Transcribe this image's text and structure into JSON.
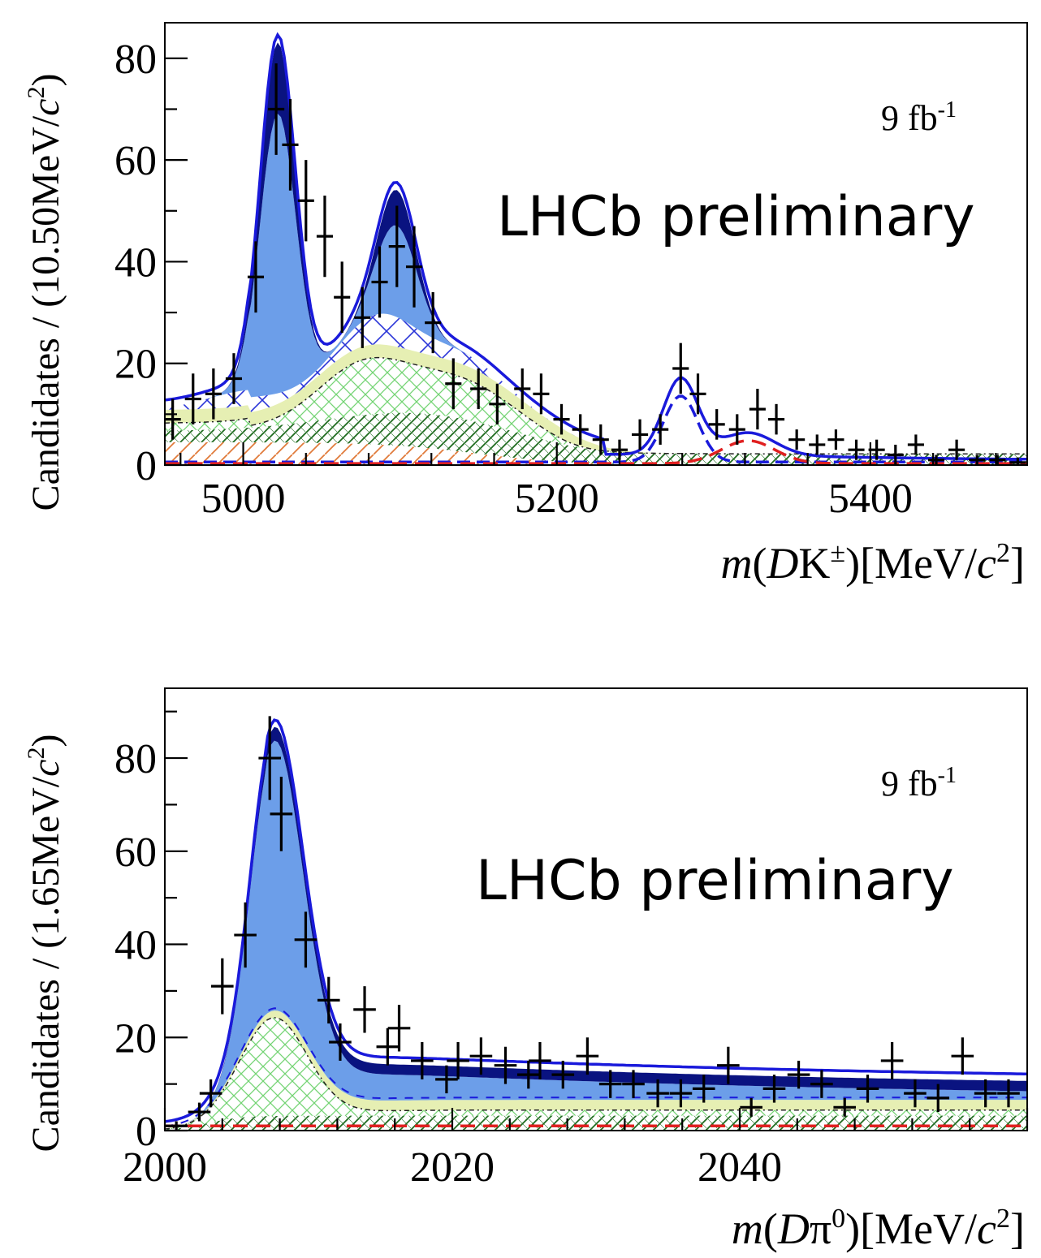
{
  "chart_data": [
    {
      "type": "scatter",
      "title": "",
      "xlabel_pre": "m(DK",
      "xlabel_sup": "±",
      "xlabel_post": ")[MeV/c²]",
      "ylabel": "Candidates / (10.50MeV/c²)",
      "lumi": "9 fb⁻¹",
      "watermark": "LHCb preliminary",
      "xlim": [
        4950,
        5500
      ],
      "ylim": [
        0,
        87
      ],
      "xticks": [
        5000,
        5200,
        5400
      ],
      "yticks": [
        0,
        20,
        40,
        60,
        80
      ],
      "points": {
        "x": [
          4955,
          4968,
          4981,
          4994,
          5008,
          5021,
          5030,
          5040,
          5052,
          5063,
          5076,
          5087,
          5098,
          5109,
          5121,
          5134,
          5150,
          5162,
          5178,
          5190,
          5203,
          5215,
          5228,
          5240,
          5253,
          5266,
          5279,
          5290,
          5302,
          5315,
          5328,
          5340,
          5353,
          5366,
          5378,
          5391,
          5404,
          5416,
          5429,
          5442,
          5455,
          5468,
          5481,
          5494
        ],
        "y": [
          9,
          13,
          14,
          17,
          37,
          70,
          63,
          52,
          45,
          33,
          29,
          36,
          43,
          39,
          28,
          16,
          15,
          12,
          15,
          14,
          9,
          7,
          5,
          3,
          6,
          7,
          19,
          14,
          8,
          7,
          11,
          9,
          5,
          4,
          5,
          3,
          3,
          2,
          4,
          1,
          3,
          1,
          1,
          0.5
        ],
        "err": [
          4,
          5,
          5,
          5,
          7,
          9,
          9,
          8,
          8,
          7,
          6,
          7,
          8,
          8,
          6,
          5,
          4,
          4,
          4,
          4,
          3,
          3,
          3,
          2,
          3,
          3,
          5,
          4,
          3,
          3,
          4,
          3,
          2,
          2,
          2,
          2,
          2,
          2,
          2,
          1,
          2,
          1,
          1,
          1
        ]
      },
      "series": [
        {
          "name": "total fit",
          "color": "#1a1adb"
        },
        {
          "name": "signal (dark)",
          "color": "#0a1380"
        },
        {
          "name": "signal (light)",
          "color": "#6c9ee9"
        },
        {
          "name": "partially reconstructed (blue hatched)",
          "color": "#2a35d8"
        },
        {
          "name": "misID (light green band)",
          "color": "#e6efb3"
        },
        {
          "name": "combinatorial (green crosshatch)",
          "color": "#74d474"
        },
        {
          "name": "dark green hatched",
          "color": "#1e6b1e"
        },
        {
          "name": "orange hatched",
          "color": "#e07a3a"
        },
        {
          "name": "B peak (dashed blue)",
          "color": "#1a1adb"
        },
        {
          "name": "red dashed",
          "color": "#e02020"
        }
      ]
    },
    {
      "type": "scatter",
      "title": "",
      "xlabel_pre": "m(Dπ",
      "xlabel_sup": "0",
      "xlabel_post": ")[MeV/c²]",
      "ylabel": "Candidates / (1.65MeV/c²)",
      "lumi": "9 fb⁻¹",
      "watermark": "LHCb preliminary",
      "xlim": [
        2000,
        2060
      ],
      "ylim": [
        0,
        95
      ],
      "xticks": [
        2000,
        2020,
        2040
      ],
      "yticks": [
        0,
        20,
        40,
        60,
        80
      ],
      "points": {
        "x": [
          2000.8,
          2002.4,
          2003.2,
          2004.0,
          2005.6,
          2007.3,
          2008.1,
          2009.8,
          2011.4,
          2012.2,
          2013.9,
          2015.5,
          2016.3,
          2017.9,
          2019.6,
          2020.4,
          2022.0,
          2023.7,
          2025.3,
          2026.1,
          2027.7,
          2029.4,
          2031.0,
          2032.6,
          2034.3,
          2035.9,
          2037.5,
          2039.2,
          2040.8,
          2042.4,
          2044.1,
          2045.7,
          2047.3,
          2048.9,
          2050.6,
          2052.2,
          2053.8,
          2055.5,
          2057.1,
          2058.7
        ],
        "y": [
          1,
          4,
          8,
          31,
          42,
          80,
          68,
          41,
          28,
          19,
          26,
          18,
          22,
          15,
          11,
          15,
          16,
          14,
          12,
          15,
          12,
          16,
          10,
          10,
          8,
          8,
          9,
          14,
          5,
          9,
          12,
          10,
          5,
          9,
          15,
          8,
          7,
          16,
          8,
          8
        ],
        "err": [
          1,
          2,
          3,
          6,
          7,
          9,
          8,
          6,
          5,
          4,
          5,
          4,
          5,
          4,
          3,
          4,
          4,
          4,
          3,
          4,
          3,
          4,
          3,
          3,
          3,
          3,
          3,
          4,
          2,
          3,
          3,
          3,
          2,
          3,
          4,
          3,
          3,
          4,
          3,
          3
        ]
      },
      "series": [
        {
          "name": "total fit",
          "color": "#1a1adb"
        },
        {
          "name": "signal (dark)",
          "color": "#0a1380"
        },
        {
          "name": "signal (light)",
          "color": "#6c9ee9"
        },
        {
          "name": "misID (light green band)",
          "color": "#e6efb3"
        },
        {
          "name": "combinatorial (green crosshatch)",
          "color": "#74d474"
        },
        {
          "name": "dark green hatched",
          "color": "#1e6b1e"
        },
        {
          "name": "red dashed",
          "color": "#e02020"
        }
      ]
    }
  ]
}
